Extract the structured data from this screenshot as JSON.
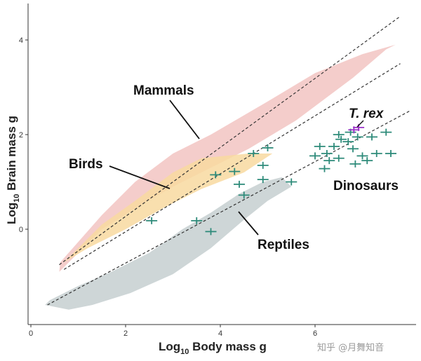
{
  "chart_data": {
    "type": "scatter",
    "title": "",
    "xlabel": "Log10 Body mass g",
    "ylabel": "Log10 Brain mass g",
    "xlim": [
      0,
      8
    ],
    "ylim": [
      -2,
      4.5
    ],
    "xticks": [
      0,
      2,
      4,
      6
    ],
    "yticks": [
      0,
      2,
      4
    ],
    "grid": false,
    "annotations": [
      "Mammals",
      "Birds",
      "T. rex",
      "Dinosaurs",
      "Reptiles"
    ],
    "regions": [
      {
        "name": "Mammals",
        "color": "#f2c4c2",
        "polygon": [
          [
            0.6,
            -0.9
          ],
          [
            0.62,
            -0.7
          ],
          [
            1.5,
            0.3
          ],
          [
            2.2,
            1.0
          ],
          [
            3.0,
            1.6
          ],
          [
            3.8,
            2.0
          ],
          [
            5.0,
            2.7
          ],
          [
            6.0,
            3.3
          ],
          [
            7.0,
            3.7
          ],
          [
            7.7,
            3.9
          ],
          [
            7.5,
            3.8
          ],
          [
            6.8,
            3.2
          ],
          [
            5.6,
            2.3
          ],
          [
            4.6,
            1.7
          ],
          [
            3.8,
            1.3
          ],
          [
            3.0,
            0.9
          ],
          [
            2.3,
            0.5
          ],
          [
            1.5,
            0.0
          ],
          [
            0.9,
            -0.6
          ]
        ]
      },
      {
        "name": "Birds",
        "color": "#f8d9a0",
        "polygon": [
          [
            0.7,
            -0.7
          ],
          [
            1.5,
            0.1
          ],
          [
            2.2,
            0.6
          ],
          [
            3.0,
            1.2
          ],
          [
            3.6,
            1.5
          ],
          [
            4.6,
            1.6
          ],
          [
            5.1,
            1.6
          ],
          [
            4.5,
            1.2
          ],
          [
            3.6,
            0.85
          ],
          [
            2.8,
            0.45
          ],
          [
            2.0,
            0.0
          ],
          [
            1.2,
            -0.4
          ]
        ]
      },
      {
        "name": "Reptiles",
        "color": "#c6cfd0",
        "polygon": [
          [
            0.3,
            -1.6
          ],
          [
            0.8,
            -1.7
          ],
          [
            1.3,
            -1.6
          ],
          [
            2.1,
            -1.35
          ],
          [
            3.0,
            -0.95
          ],
          [
            3.8,
            -0.4
          ],
          [
            4.5,
            0.2
          ],
          [
            5.0,
            0.6
          ],
          [
            5.5,
            0.9
          ],
          [
            5.3,
            1.1
          ],
          [
            4.9,
            1.0
          ],
          [
            4.4,
            0.75
          ],
          [
            3.8,
            0.35
          ],
          [
            3.2,
            0.0
          ],
          [
            2.5,
            -0.5
          ],
          [
            1.7,
            -0.9
          ],
          [
            1.0,
            -1.2
          ],
          [
            0.4,
            -1.5
          ]
        ]
      }
    ],
    "lines": [
      {
        "name": "",
        "x": [
          0.6,
          7.8
        ],
        "y": [
          -0.75,
          4.5
        ]
      },
      {
        "name": "",
        "x": [
          0.7,
          7.8
        ],
        "y": [
          -0.85,
          3.5
        ]
      },
      {
        "name": "",
        "x": [
          0.35,
          8.0
        ],
        "y": [
          -1.6,
          2.5
        ]
      }
    ],
    "series": [
      {
        "name": "Dinosaurs",
        "color": "#2e8b7a",
        "points": [
          [
            2.55,
            0.18
          ],
          [
            3.5,
            0.18
          ],
          [
            3.8,
            -0.05
          ],
          [
            3.9,
            1.15
          ],
          [
            4.4,
            0.95
          ],
          [
            4.5,
            0.72
          ],
          [
            4.3,
            1.22
          ],
          [
            4.9,
            1.05
          ],
          [
            4.9,
            1.35
          ],
          [
            4.7,
            1.6
          ],
          [
            5.0,
            1.72
          ],
          [
            5.5,
            1.0
          ],
          [
            6.0,
            1.55
          ],
          [
            6.1,
            1.75
          ],
          [
            6.2,
            1.28
          ],
          [
            6.3,
            1.45
          ],
          [
            6.25,
            1.6
          ],
          [
            6.4,
            1.75
          ],
          [
            6.5,
            1.5
          ],
          [
            6.5,
            2.0
          ],
          [
            6.55,
            1.9
          ],
          [
            6.7,
            1.85
          ],
          [
            6.75,
            2.05
          ],
          [
            6.8,
            1.7
          ],
          [
            6.85,
            1.38
          ],
          [
            6.9,
            1.95
          ],
          [
            7.0,
            1.55
          ],
          [
            7.1,
            1.45
          ],
          [
            7.2,
            1.95
          ],
          [
            7.3,
            1.6
          ],
          [
            7.5,
            2.05
          ],
          [
            7.6,
            1.6
          ]
        ]
      },
      {
        "name": "T. rex",
        "color": "#9b30c8",
        "points": [
          [
            6.82,
            2.1
          ],
          [
            6.92,
            2.15
          ]
        ]
      }
    ]
  },
  "watermark": "知乎 @月舞知音"
}
